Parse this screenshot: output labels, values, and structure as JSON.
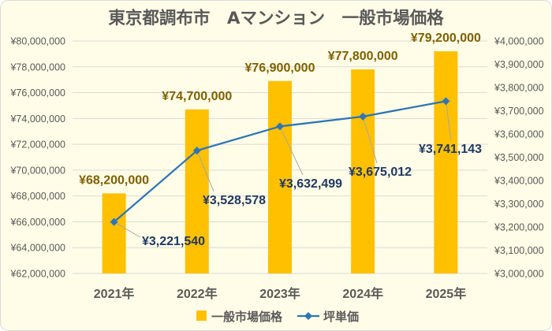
{
  "chart_data": {
    "type": "bar",
    "title": "東京都調布市　Aマンション　一般市場価格",
    "categories": [
      "2021年",
      "2022年",
      "2023年",
      "2024年",
      "2025年"
    ],
    "series": [
      {
        "name": "一般市場価格",
        "type": "bar",
        "axis": "left",
        "values": [
          68200000,
          74700000,
          76900000,
          77800000,
          79200000
        ],
        "labels": [
          "¥68,200,000",
          "¥74,700,000",
          "¥76,900,000",
          "¥77,800,000",
          "¥79,200,000"
        ],
        "color": "#FFC000",
        "label_color": "#7F6000"
      },
      {
        "name": "坪単価",
        "type": "line",
        "axis": "right",
        "marker": "diamond",
        "values": [
          3221540,
          3528578,
          3632499,
          3675012,
          3741143
        ],
        "labels": [
          "¥3,221,540",
          "¥3,528,578",
          "¥3,632,499",
          "¥3,675,012",
          "¥3,741,143"
        ],
        "color": "#2E75B6",
        "label_color": "#1F3864"
      }
    ],
    "ylim": [
      62000000,
      80000000
    ],
    "yticks": [
      62000000,
      64000000,
      66000000,
      68000000,
      70000000,
      72000000,
      74000000,
      76000000,
      78000000,
      80000000
    ],
    "ytick_labels": [
      "¥62,000,000",
      "¥64,000,000",
      "¥66,000,000",
      "¥68,000,000",
      "¥70,000,000",
      "¥72,000,000",
      "¥74,000,000",
      "¥76,000,000",
      "¥78,000,000",
      "¥80,000,000"
    ],
    "y2lim": [
      3000000,
      4000000
    ],
    "y2ticks": [
      3000000,
      3100000,
      3200000,
      3300000,
      3400000,
      3500000,
      3600000,
      3700000,
      3800000,
      3900000,
      4000000
    ],
    "y2tick_labels": [
      "¥3,000,000",
      "¥3,100,000",
      "¥3,200,000",
      "¥3,300,000",
      "¥3,400,000",
      "¥3,500,000",
      "¥3,600,000",
      "¥3,700,000",
      "¥3,800,000",
      "¥3,900,000",
      "¥4,000,000"
    ],
    "grid": true,
    "legend": "bottom"
  },
  "colors": {
    "background": "#FFFDE7",
    "border": "#D9D9D9",
    "grid": "#D9D9D9",
    "text": "#595959",
    "leader": "#A6A6A6"
  }
}
